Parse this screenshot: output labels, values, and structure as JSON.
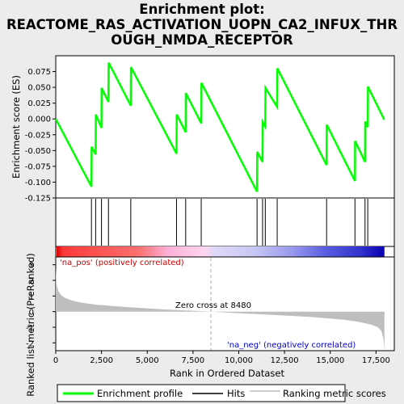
{
  "title_lines": [
    "Enrichment plot:",
    "REACTOME_RAS_ACTIVATION_UOPN_CA2_INFUX_THR",
    "OUGH_NMDA_RECEPTOR"
  ],
  "colors": {
    "enrichment": "#00ff00",
    "hits": "#000000",
    "metric": "#bebebe",
    "pos_label": "#cc0000",
    "neg_label": "#0000cc"
  },
  "annotations": {
    "zero_cross": "Zero cross at 8480",
    "na_pos": "'na_pos' (positively correlated)",
    "na_neg": "'na_neg' (negatively correlated)"
  },
  "legend": {
    "enrichment": "Enrichment profile",
    "hits": "Hits",
    "metric": "Ranking metric scores"
  },
  "chart_data": [
    {
      "type": "line",
      "ylabel": "Enrichment score (ES)",
      "ylim": [
        -0.125,
        0.1
      ],
      "yticks": [
        "0.075",
        "0.050",
        "0.025",
        "0.000",
        "-0.025",
        "-0.050",
        "-0.075",
        "-0.100",
        "-0.125"
      ],
      "ytick_values": [
        0.075,
        0.05,
        0.025,
        0.0,
        -0.025,
        -0.05,
        -0.075,
        -0.1,
        -0.125
      ],
      "series": [
        {
          "x": [
            0,
            1950,
            1960,
            2180,
            2190,
            2500,
            2510,
            2880,
            2890,
            4100,
            4110,
            6600,
            6610,
            7100,
            7110,
            7950,
            7960,
            11000,
            11010,
            11300,
            11310,
            11450,
            11460,
            12100,
            12110,
            14800,
            14810,
            16350,
            16360,
            16900,
            16910,
            17050,
            17060,
            17950
          ],
          "y": [
            0.0,
            -0.107,
            -0.044,
            -0.056,
            0.007,
            -0.014,
            0.049,
            0.027,
            0.089,
            0.021,
            0.082,
            -0.055,
            0.007,
            -0.021,
            0.041,
            -0.007,
            0.057,
            -0.115,
            -0.052,
            -0.068,
            -0.005,
            -0.012,
            0.049,
            0.019,
            0.08,
            -0.073,
            -0.009,
            -0.098,
            -0.035,
            -0.068,
            -0.004,
            -0.013,
            0.051,
            -0.001
          ]
        }
      ]
    },
    {
      "type": "hits",
      "positions": [
        1950,
        2180,
        2500,
        2880,
        4100,
        6600,
        7100,
        7950,
        11000,
        11300,
        11450,
        12100,
        14800,
        16350,
        16900,
        17050
      ]
    },
    {
      "type": "area",
      "xlabel": "Rank in Ordered Dataset",
      "ylabel": "Ranked list metric (PreRanked)",
      "xlim": [
        0,
        18500
      ],
      "ylim": [
        -2.5,
        3.5
      ],
      "xticks": [
        "0",
        "2,500",
        "5,000",
        "7,500",
        "10,000",
        "12,500",
        "15,000",
        "17,500"
      ],
      "xtick_values": [
        0,
        2500,
        5000,
        7500,
        10000,
        12500,
        15000,
        17500
      ],
      "yticks": [
        "3",
        "2",
        "1",
        "0",
        "-1",
        "-2"
      ],
      "ytick_values": [
        3,
        2,
        1,
        0,
        -1,
        -2
      ],
      "zero_cross": 8480,
      "x": [
        0,
        50,
        150,
        300,
        500,
        800,
        1200,
        1700,
        2300,
        3000,
        4000,
        5000,
        6000,
        7000,
        8000,
        8480,
        9000,
        10000,
        11000,
        12000,
        13000,
        14000,
        15000,
        15800,
        16400,
        16900,
        17300,
        17600,
        17800,
        17900,
        17960
      ],
      "values": [
        2.8,
        1.7,
        1.3,
        1.05,
        0.88,
        0.75,
        0.62,
        0.52,
        0.44,
        0.37,
        0.28,
        0.21,
        0.14,
        0.08,
        0.03,
        0.0,
        -0.04,
        -0.1,
        -0.16,
        -0.22,
        -0.28,
        -0.35,
        -0.44,
        -0.53,
        -0.63,
        -0.74,
        -0.86,
        -1.0,
        -1.25,
        -1.7,
        -2.4
      ]
    }
  ]
}
